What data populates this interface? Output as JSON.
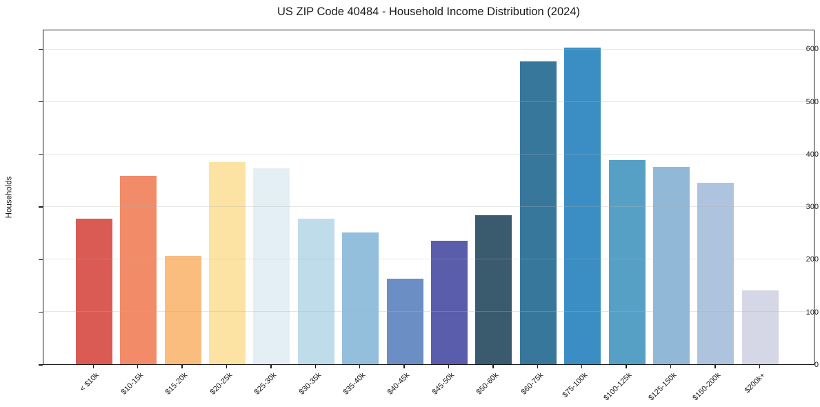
{
  "chart_data": {
    "type": "bar",
    "title": "US ZIP Code 40484 - Household Income Distribution (2024)",
    "xlabel": "",
    "ylabel": "Households",
    "categories": [
      "< $10k",
      "$10-15k",
      "$15-20k",
      "$20-25k",
      "$25-30k",
      "$30-35k",
      "$35-40k",
      "$40-45k",
      "$45-50k",
      "$50-60k",
      "$60-75k",
      "$75-100k",
      "$100-125k",
      "$125-150k",
      "$150-200k",
      "$200k+"
    ],
    "values": [
      278,
      359,
      207,
      386,
      374,
      278,
      251,
      163,
      235,
      284,
      578,
      604,
      390,
      377,
      346,
      141
    ],
    "bar_colors": [
      "#d95b53",
      "#f28b68",
      "#fabd7e",
      "#fce3a3",
      "#e4eff5",
      "#bfdcea",
      "#93bfdc",
      "#6b8fc4",
      "#5a5dab",
      "#3a5a6e",
      "#38779c",
      "#3b8ec3",
      "#57a0c5",
      "#92b8d8",
      "#aec4de",
      "#d6d7e6"
    ],
    "yticks": [
      0,
      100,
      200,
      300,
      400,
      500,
      600
    ],
    "ylim": [
      0,
      637
    ],
    "grid": "horizontal",
    "legend": "none"
  },
  "style_colors": {
    "spine": "#1a1a1a",
    "grid": "#b2b2b2",
    "background": "#ffffff",
    "text": "#1a1a1a"
  }
}
